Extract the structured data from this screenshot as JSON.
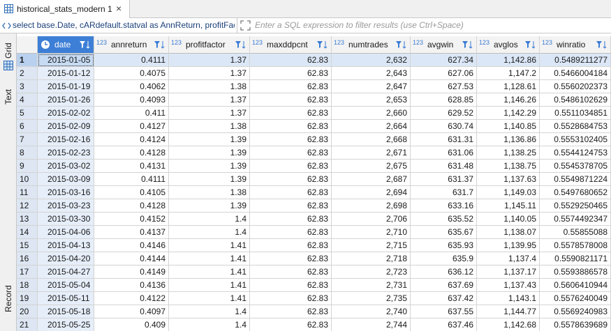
{
  "tab": {
    "title": "historical_stats_modern 1",
    "close": "×"
  },
  "filter_bar": {
    "query": "select base.Date, cARdefault.statval as AnnReturn, profitFac",
    "placeholder": "Enter a SQL expression to filter results (use Ctrl+Space)"
  },
  "side_panel": {
    "tabs": [
      "Grid",
      "Text",
      "Record"
    ]
  },
  "table": {
    "columns": [
      {
        "name": "date",
        "type": null
      },
      {
        "name": "annreturn",
        "type": "123"
      },
      {
        "name": "profitfactor",
        "type": "123"
      },
      {
        "name": "maxddpcnt",
        "type": "123"
      },
      {
        "name": "numtrades",
        "type": "123"
      },
      {
        "name": "avgwin",
        "type": "123"
      },
      {
        "name": "avglos",
        "type": "123"
      },
      {
        "name": "winratio",
        "type": "123"
      }
    ],
    "rows": [
      [
        "1",
        "2015-01-05",
        "0.4111",
        "1.37",
        "62.83",
        "2,632",
        "627.34",
        "1,142.86",
        "0.5489211277"
      ],
      [
        "2",
        "2015-01-12",
        "0.4075",
        "1.37",
        "62.83",
        "2,643",
        "627.06",
        "1,147.2",
        "0.5466004184"
      ],
      [
        "3",
        "2015-01-19",
        "0.4062",
        "1.38",
        "62.83",
        "2,647",
        "627.53",
        "1,128.61",
        "0.5560202373"
      ],
      [
        "4",
        "2015-01-26",
        "0.4093",
        "1.37",
        "62.83",
        "2,653",
        "628.85",
        "1,146.26",
        "0.5486102629"
      ],
      [
        "5",
        "2015-02-02",
        "0.411",
        "1.37",
        "62.83",
        "2,660",
        "629.52",
        "1,142.29",
        "0.5511034851"
      ],
      [
        "6",
        "2015-02-09",
        "0.4127",
        "1.38",
        "62.83",
        "2,664",
        "630.74",
        "1,140.85",
        "0.5528684753"
      ],
      [
        "7",
        "2015-02-16",
        "0.4124",
        "1.39",
        "62.83",
        "2,668",
        "631.31",
        "1,136.86",
        "0.5553102405"
      ],
      [
        "8",
        "2015-02-23",
        "0.4128",
        "1.39",
        "62.83",
        "2,671",
        "631.06",
        "1,138.25",
        "0.5544124753"
      ],
      [
        "9",
        "2015-03-02",
        "0.4131",
        "1.39",
        "62.83",
        "2,675",
        "631.48",
        "1,138.75",
        "0.5545378705"
      ],
      [
        "10",
        "2015-03-09",
        "0.4111",
        "1.39",
        "62.83",
        "2,687",
        "631.37",
        "1,137.63",
        "0.5549871224"
      ],
      [
        "11",
        "2015-03-16",
        "0.4105",
        "1.38",
        "62.83",
        "2,694",
        "631.7",
        "1,149.03",
        "0.5497680652"
      ],
      [
        "12",
        "2015-03-23",
        "0.4128",
        "1.39",
        "62.83",
        "2,698",
        "633.16",
        "1,145.11",
        "0.5529250465"
      ],
      [
        "13",
        "2015-03-30",
        "0.4152",
        "1.4",
        "62.83",
        "2,706",
        "635.52",
        "1,140.05",
        "0.5574492347"
      ],
      [
        "14",
        "2015-04-06",
        "0.4137",
        "1.4",
        "62.83",
        "2,710",
        "635.67",
        "1,138.07",
        "0.55855088"
      ],
      [
        "15",
        "2015-04-13",
        "0.4146",
        "1.41",
        "62.83",
        "2,715",
        "635.93",
        "1,139.95",
        "0.5578578008"
      ],
      [
        "16",
        "2015-04-20",
        "0.4144",
        "1.41",
        "62.83",
        "2,718",
        "635.9",
        "1,137.4",
        "0.5590821171"
      ],
      [
        "17",
        "2015-04-27",
        "0.4149",
        "1.41",
        "62.83",
        "2,723",
        "636.12",
        "1,137.17",
        "0.5593886578"
      ],
      [
        "18",
        "2015-05-04",
        "0.4136",
        "1.41",
        "62.83",
        "2,731",
        "637.69",
        "1,137.43",
        "0.5606410944"
      ],
      [
        "19",
        "2015-05-11",
        "0.4122",
        "1.41",
        "62.83",
        "2,735",
        "637.42",
        "1,143.1",
        "0.5576240049"
      ],
      [
        "20",
        "2015-05-18",
        "0.4097",
        "1.4",
        "62.83",
        "2,740",
        "637.55",
        "1,144.77",
        "0.5569240983"
      ],
      [
        "21",
        "2015-05-25",
        "0.409",
        "1.4",
        "62.83",
        "2,744",
        "637.46",
        "1,142.68",
        "0.5578639689"
      ]
    ]
  }
}
